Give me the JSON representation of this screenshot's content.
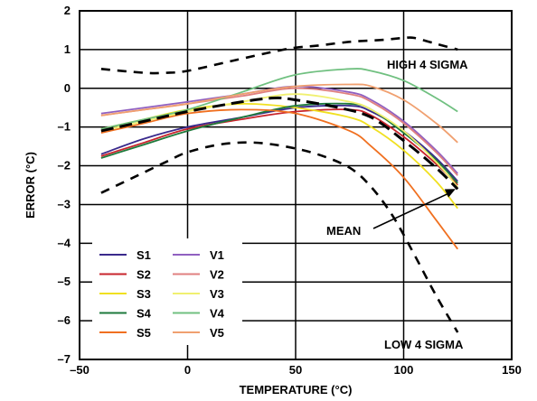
{
  "chart_data": {
    "type": "line",
    "xlabel": "TEMPERATURE (°C)",
    "ylabel": "ERROR (°C)",
    "xlim": [
      -50,
      150
    ],
    "ylim": [
      -7,
      2
    ],
    "xticks": [
      "–50",
      "0",
      "50",
      "100",
      "150"
    ],
    "xtick_values": [
      -50,
      0,
      50,
      100,
      150
    ],
    "yticks": [
      "2",
      "1",
      "0",
      "–1",
      "–2",
      "–3",
      "–4",
      "–5",
      "–6",
      "–7"
    ],
    "ytick_values": [
      2,
      1,
      0,
      -1,
      -2,
      -3,
      -4,
      -5,
      -6,
      -7
    ],
    "grid": true,
    "legend_position": "bottom-left",
    "series": [
      {
        "name": "S1",
        "color": "#3a2a8c",
        "x": [
          -40,
          -20,
          0,
          25,
          50,
          75,
          85,
          100,
          115,
          125
        ],
        "y": [
          -1.7,
          -1.3,
          -1.0,
          -0.75,
          -0.5,
          -0.45,
          -0.6,
          -1.1,
          -1.8,
          -2.4
        ]
      },
      {
        "name": "S2",
        "color": "#c8242c",
        "x": [
          -40,
          -20,
          0,
          25,
          50,
          75,
          85,
          100,
          115,
          125
        ],
        "y": [
          -1.75,
          -1.4,
          -1.05,
          -0.8,
          -0.6,
          -0.55,
          -0.7,
          -1.25,
          -1.95,
          -2.5
        ]
      },
      {
        "name": "S3",
        "color": "#f0e020",
        "x": [
          -40,
          -20,
          0,
          25,
          50,
          75,
          85,
          100,
          115,
          125
        ],
        "y": [
          -1.05,
          -0.8,
          -0.55,
          -0.4,
          -0.5,
          -0.75,
          -1.0,
          -1.6,
          -2.4,
          -3.1
        ]
      },
      {
        "name": "S4",
        "color": "#1e7a3c",
        "x": [
          -40,
          -20,
          0,
          25,
          50,
          75,
          85,
          100,
          115,
          125
        ],
        "y": [
          -1.8,
          -1.45,
          -1.1,
          -0.75,
          -0.45,
          -0.4,
          -0.55,
          -1.15,
          -1.85,
          -2.45
        ]
      },
      {
        "name": "S5",
        "color": "#f07020",
        "x": [
          -40,
          -20,
          0,
          25,
          50,
          75,
          85,
          100,
          115,
          125
        ],
        "y": [
          -1.15,
          -0.9,
          -0.65,
          -0.55,
          -0.65,
          -1.1,
          -1.5,
          -2.3,
          -3.4,
          -4.15
        ]
      },
      {
        "name": "V1",
        "color": "#9060c0",
        "x": [
          -40,
          -20,
          0,
          25,
          50,
          75,
          85,
          100,
          115,
          125
        ],
        "y": [
          -0.65,
          -0.5,
          -0.35,
          -0.15,
          0.05,
          -0.1,
          -0.3,
          -0.85,
          -1.6,
          -2.2
        ]
      },
      {
        "name": "V2",
        "color": "#e08080",
        "x": [
          -40,
          -20,
          0,
          25,
          50,
          75,
          85,
          100,
          115,
          125
        ],
        "y": [
          -0.7,
          -0.55,
          -0.4,
          -0.2,
          0.0,
          -0.15,
          -0.35,
          -0.9,
          -1.65,
          -2.25
        ]
      },
      {
        "name": "V3",
        "color": "#f0f070",
        "x": [
          -40,
          -20,
          0,
          25,
          50,
          75,
          85,
          100,
          115,
          125
        ],
        "y": [
          -1.1,
          -0.85,
          -0.6,
          -0.35,
          -0.15,
          -0.35,
          -0.55,
          -1.1,
          -1.9,
          -2.55
        ]
      },
      {
        "name": "V4",
        "color": "#70c080",
        "x": [
          -40,
          -20,
          0,
          25,
          50,
          75,
          85,
          100,
          115,
          125
        ],
        "y": [
          -1.05,
          -0.8,
          -0.55,
          -0.1,
          0.35,
          0.5,
          0.45,
          0.2,
          -0.25,
          -0.6
        ]
      },
      {
        "name": "V5",
        "color": "#f0a070",
        "x": [
          -40,
          -20,
          0,
          25,
          50,
          75,
          85,
          100,
          115,
          125
        ],
        "y": [
          -0.7,
          -0.55,
          -0.4,
          -0.15,
          0.05,
          0.1,
          0.05,
          -0.3,
          -0.9,
          -1.4
        ]
      },
      {
        "name": "MEAN",
        "color": "#000000",
        "style": "dashed-bold",
        "x": [
          -40,
          -20,
          0,
          25,
          40,
          50,
          70,
          85,
          100,
          115,
          125
        ],
        "y": [
          -1.1,
          -0.85,
          -0.6,
          -0.35,
          -0.25,
          -0.3,
          -0.5,
          -0.75,
          -1.35,
          -2.05,
          -2.6
        ]
      },
      {
        "name": "HIGH 4 SIGMA",
        "color": "#000000",
        "style": "dashed",
        "x": [
          -40,
          -20,
          -10,
          0,
          20,
          40,
          50,
          60,
          75,
          90,
          100,
          105,
          115,
          125
        ],
        "y": [
          0.5,
          0.4,
          0.4,
          0.45,
          0.7,
          0.95,
          1.05,
          1.1,
          1.2,
          1.25,
          1.3,
          1.3,
          1.15,
          1.0
        ]
      },
      {
        "name": "LOW 4 SIGMA",
        "color": "#000000",
        "style": "dashed",
        "x": [
          -40,
          -25,
          -10,
          0,
          15,
          30,
          45,
          60,
          75,
          85,
          95,
          105,
          115,
          125
        ],
        "y": [
          -2.7,
          -2.3,
          -1.9,
          -1.65,
          -1.45,
          -1.4,
          -1.5,
          -1.7,
          -2.05,
          -2.55,
          -3.3,
          -4.3,
          -5.35,
          -6.3
        ]
      }
    ],
    "legend": {
      "col1": [
        "S1",
        "S2",
        "S3",
        "S4",
        "S5"
      ],
      "col2": [
        "V1",
        "V2",
        "V3",
        "V4",
        "V5"
      ]
    },
    "annotations": {
      "high": "HIGH 4 SIGMA",
      "low": "LOW 4 SIGMA",
      "mean": "MEAN"
    }
  }
}
